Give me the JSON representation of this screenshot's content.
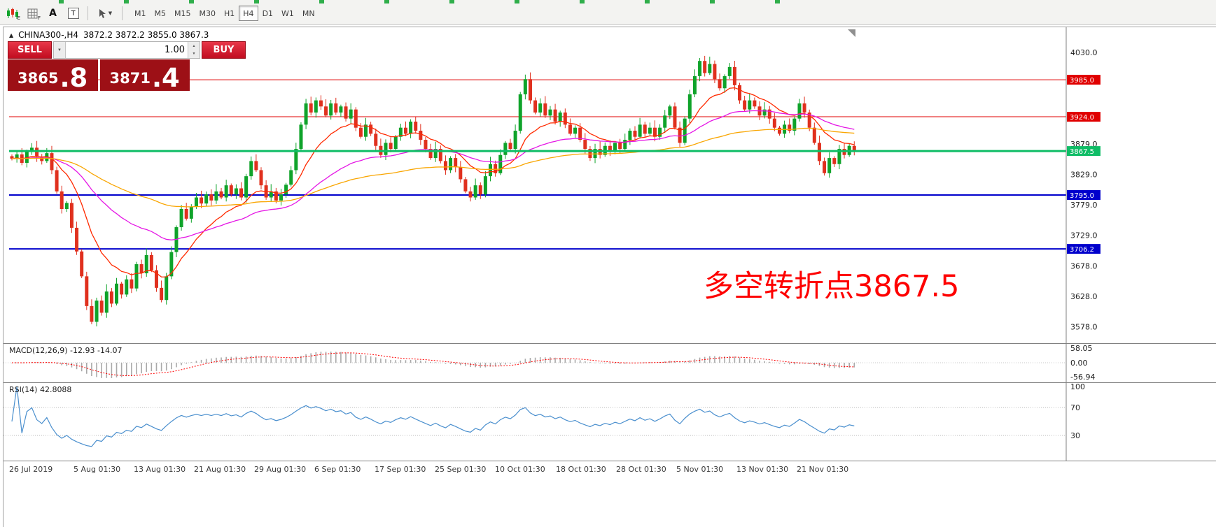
{
  "toolbar": {
    "timeframes": [
      "M1",
      "M5",
      "M15",
      "M30",
      "H1",
      "H4",
      "D1",
      "W1",
      "MN"
    ],
    "active_timeframe": "H4",
    "tool_badges": {
      "candles": "E",
      "grid": "F"
    },
    "text_tool": "A",
    "label_tool": "T"
  },
  "header": {
    "collapse_icon": "▲",
    "symbol": "CHINA300-,H4",
    "ohlc": "3872.2 3872.2 3855.0 3867.3"
  },
  "trade": {
    "sell_label": "SELL",
    "buy_label": "BUY",
    "volume": "1.00",
    "sell_price_main": "3865",
    "sell_price_big": ".8",
    "buy_price_main": "3871",
    "buy_price_big": ".4"
  },
  "annotation": {
    "text": "多空转折点3867.5",
    "color": "#fe0000"
  },
  "macd": {
    "label": "MACD(12,26,9) -12.93 -14.07",
    "axis_labels": [
      "58.05",
      "0.00",
      "-56.94"
    ]
  },
  "rsi": {
    "label": "RSI(14) 42.8088",
    "axis_labels": [
      "100",
      "70",
      "30"
    ]
  },
  "colors": {
    "bull": "#0fa32a",
    "bear": "#e0301e",
    "macd_hist": "#a9a9a9",
    "macd_signal": "#ff0000",
    "rsi_line": "#4a8fce",
    "tag_red": "#e00000",
    "tag_blue": "#0000cc",
    "tag_green": "#0fbd66"
  },
  "chart_data": {
    "type": "candlestick",
    "symbol": "CHINA300-",
    "timeframe": "H4",
    "last_ohlc": {
      "open": 3872.2,
      "high": 3872.2,
      "low": 3855.0,
      "close": 3867.3
    },
    "bid": 3865.8,
    "ask": 3871.4,
    "y_range": [
      3560,
      4060
    ],
    "y_ticks": [
      {
        "label": "4030.0",
        "value": 4030
      },
      {
        "label": "3879.0",
        "value": 3879
      },
      {
        "label": "3829.0",
        "value": 3829
      },
      {
        "label": "3779.0",
        "value": 3779
      },
      {
        "label": "3729.0",
        "value": 3729
      },
      {
        "label": "3678.0",
        "value": 3678
      },
      {
        "label": "3628.0",
        "value": 3628
      },
      {
        "label": "3578.0",
        "value": 3578
      }
    ],
    "price_levels": [
      {
        "label": "3985.0",
        "value": 3985.0,
        "color": "#e00000",
        "width": 1
      },
      {
        "label": "3924.0",
        "value": 3924.0,
        "color": "#e00000",
        "width": 1
      },
      {
        "label": "3867.5",
        "value": 3867.5,
        "color": "#0fbd66",
        "width": 3
      },
      {
        "label": "3795.0",
        "value": 3795.0,
        "color": "#0000cc",
        "width": 2
      },
      {
        "label": "3706.2",
        "value": 3706.2,
        "color": "#0000cc",
        "width": 2
      }
    ],
    "x_labels": [
      "26 Jul 2019",
      "5 Aug 01:30",
      "13 Aug 01:30",
      "21 Aug 01:30",
      "29 Aug 01:30",
      "6 Sep 01:30",
      "17 Sep 01:30",
      "25 Sep 01:30",
      "10 Oct 01:30",
      "18 Oct 01:30",
      "28 Oct 01:30",
      "5 Nov 01:30",
      "13 Nov 01:30",
      "21 Nov 01:30"
    ],
    "closes": [
      3855,
      3862,
      3848,
      3866,
      3873,
      3858,
      3851,
      3864,
      3836,
      3801,
      3772,
      3782,
      3741,
      3702,
      3661,
      3612,
      3586,
      3621,
      3601,
      3636,
      3616,
      3649,
      3631,
      3656,
      3641,
      3681,
      3666,
      3696,
      3671,
      3642,
      3622,
      3661,
      3701,
      3742,
      3772,
      3756,
      3776,
      3791,
      3781,
      3796,
      3786,
      3801,
      3791,
      3811,
      3796,
      3806,
      3791,
      3826,
      3851,
      3836,
      3811,
      3791,
      3801,
      3786,
      3796,
      3812,
      3836,
      3871,
      3911,
      3946,
      3931,
      3951,
      3941,
      3926,
      3946,
      3931,
      3941,
      3921,
      3936,
      3906,
      3891,
      3911,
      3896,
      3876,
      3861,
      3881,
      3871,
      3891,
      3906,
      3896,
      3916,
      3901,
      3886,
      3871,
      3856,
      3871,
      3851,
      3836,
      3856,
      3841,
      3821,
      3801,
      3791,
      3811,
      3796,
      3826,
      3846,
      3831,
      3861,
      3881,
      3871,
      3901,
      3961,
      3986,
      3951,
      3931,
      3946,
      3926,
      3936,
      3916,
      3931,
      3911,
      3896,
      3906,
      3886,
      3871,
      3856,
      3871,
      3861,
      3876,
      3866,
      3881,
      3871,
      3886,
      3901,
      3891,
      3911,
      3896,
      3906,
      3891,
      3906,
      3926,
      3941,
      3906,
      3881,
      3921,
      3961,
      3991,
      4016,
      3996,
      4011,
      3986,
      3971,
      3991,
      4006,
      3976,
      3951,
      3936,
      3951,
      3941,
      3926,
      3936,
      3921,
      3906,
      3896,
      3911,
      3901,
      3921,
      3946,
      3931,
      3906,
      3881,
      3851,
      3831,
      3856,
      3846,
      3871,
      3861,
      3876,
      3867
    ],
    "moving_averages": [
      {
        "name": "MA-fast",
        "period": 13,
        "color": "#ff2a00"
      },
      {
        "name": "MA-mid",
        "period": 40,
        "color": "#e516e5"
      },
      {
        "name": "MA-slow",
        "period": 90,
        "color": "#f9a602"
      }
    ],
    "macd": {
      "fast": 12,
      "slow": 26,
      "signal": 9,
      "display_values": [
        -12.93,
        -14.07
      ],
      "axis_range": [
        -56.94,
        58.05
      ]
    },
    "rsi": {
      "period": 14,
      "display_value": 42.8088,
      "levels": [
        70,
        30
      ]
    }
  }
}
